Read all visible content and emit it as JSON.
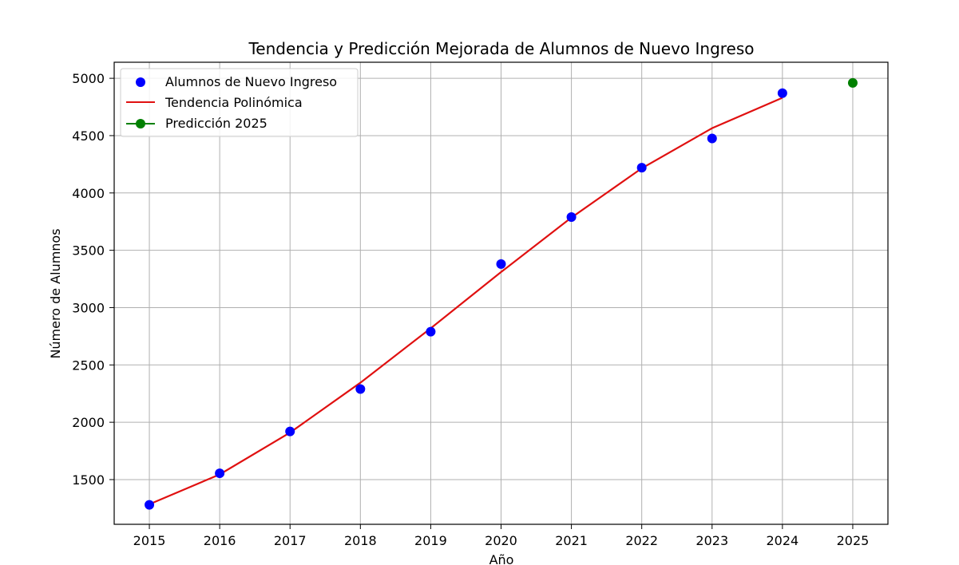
{
  "chart_data": {
    "type": "scatter",
    "title": "Tendencia y Predicción Mejorada de Alumnos de Nuevo Ingreso",
    "xlabel": "Año",
    "ylabel": "Número de Alumnos",
    "xlim": [
      2014.5,
      2025.5
    ],
    "ylim": [
      1110,
      5140
    ],
    "xticks": [
      2015,
      2016,
      2017,
      2018,
      2019,
      2020,
      2021,
      2022,
      2023,
      2024,
      2025
    ],
    "yticks": [
      1500,
      2000,
      2500,
      3000,
      3500,
      4000,
      4500,
      5000
    ],
    "grid": true,
    "legend_position": "top-left",
    "series": [
      {
        "name": "Alumnos de Nuevo Ingreso",
        "kind": "scatter",
        "color": "#0000ff",
        "x": [
          2015,
          2016,
          2017,
          2018,
          2019,
          2020,
          2021,
          2022,
          2023,
          2024
        ],
        "y": [
          1280,
          1555,
          1920,
          2290,
          2790,
          3380,
          3790,
          4220,
          4475,
          4870
        ]
      },
      {
        "name": "Tendencia Polinómica",
        "kind": "line",
        "color": "#e01010",
        "x": [
          2015,
          2016,
          2017,
          2018,
          2019,
          2020,
          2021,
          2022,
          2023,
          2024
        ],
        "y": [
          1285,
          1545,
          1910,
          2345,
          2820,
          3310,
          3785,
          4215,
          4565,
          4830
        ]
      },
      {
        "name": "Predicción 2025",
        "kind": "point-line",
        "color": "#008000",
        "x": [
          2025
        ],
        "y": [
          4960
        ]
      }
    ]
  }
}
